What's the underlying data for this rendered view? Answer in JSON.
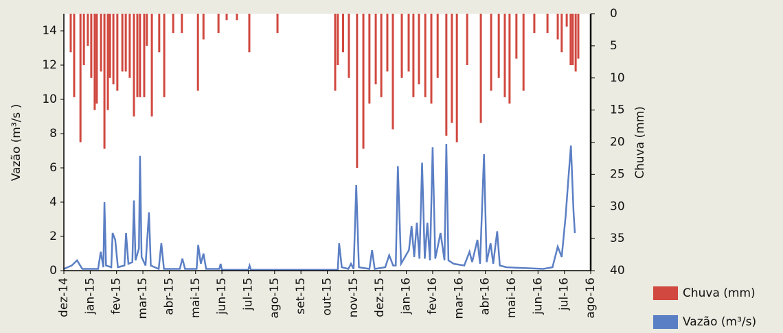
{
  "chart_data": {
    "type": "bar-line",
    "ylabel": "Vazão  (m³/s )",
    "y2label": "Chuva  (mm)",
    "xlim": [
      0,
      20
    ],
    "xticks": [
      {
        "value": 0,
        "label": "dez-14"
      },
      {
        "value": 1,
        "label": "jan-15"
      },
      {
        "value": 2,
        "label": "fev-15"
      },
      {
        "value": 3,
        "label": "mar-15"
      },
      {
        "value": 4,
        "label": "abr-15"
      },
      {
        "value": 5,
        "label": "mai-15"
      },
      {
        "value": 6,
        "label": "jun-15"
      },
      {
        "value": 7,
        "label": "jul-15"
      },
      {
        "value": 8,
        "label": "ago-15"
      },
      {
        "value": 9,
        "label": "set-15"
      },
      {
        "value": 10,
        "label": "out-15"
      },
      {
        "value": 11,
        "label": "nov-15"
      },
      {
        "value": 12,
        "label": "dez-15"
      },
      {
        "value": 13,
        "label": "jan-16"
      },
      {
        "value": 14,
        "label": "fev-16"
      },
      {
        "value": 15,
        "label": "mar-16"
      },
      {
        "value": 16,
        "label": "abr-16"
      },
      {
        "value": 17,
        "label": "mai-16"
      },
      {
        "value": 18,
        "label": "jun-16"
      },
      {
        "value": 19,
        "label": "jul-16"
      },
      {
        "value": 20,
        "label": "ago-16"
      }
    ],
    "ylim": [
      0,
      15
    ],
    "yticks": [
      0,
      2,
      4,
      6,
      8,
      10,
      12,
      14
    ],
    "y2lim": [
      0,
      40
    ],
    "y2ticks": [
      0,
      5,
      10,
      15,
      20,
      25,
      30,
      35,
      40
    ],
    "y2_inverted": true,
    "series": [
      {
        "name": "Chuva (mm)",
        "color": "#d0483f",
        "axis": "y2",
        "kind": "bar",
        "x": [
          0.26,
          0.39,
          0.63,
          0.76,
          0.91,
          1.04,
          1.17,
          1.25,
          1.41,
          1.54,
          1.67,
          1.75,
          1.88,
          2.03,
          2.22,
          2.35,
          2.5,
          2.66,
          2.79,
          2.89,
          3.05,
          3.15,
          3.34,
          3.62,
          3.81,
          4.15,
          4.48,
          5.09,
          5.3,
          5.87,
          6.18,
          6.57,
          7.04,
          8.11,
          10.3,
          10.4,
          10.6,
          10.82,
          11.13,
          11.37,
          11.6,
          11.84,
          12.05,
          12.28,
          12.49,
          12.83,
          13.09,
          13.27,
          13.48,
          13.72,
          13.95,
          14.19,
          14.52,
          14.73,
          14.92,
          15.31,
          15.83,
          16.22,
          16.51,
          16.74,
          16.92,
          17.18,
          17.45,
          17.86,
          18.36,
          18.75,
          18.9,
          19.09,
          19.24,
          19.32,
          19.43,
          19.53
        ],
        "values": [
          6,
          13,
          20,
          8,
          5,
          10,
          15,
          14,
          9,
          21,
          15,
          10,
          11,
          12,
          9,
          9,
          10,
          16,
          13,
          13,
          13,
          5,
          16,
          6,
          13,
          3,
          3,
          12,
          4,
          3,
          1,
          1,
          6,
          3,
          12,
          8,
          6,
          10,
          24,
          21,
          14,
          11,
          13,
          9,
          18,
          10,
          9,
          13,
          11,
          13,
          14,
          10,
          19,
          17,
          20,
          8,
          17,
          12,
          10,
          13,
          14,
          7,
          12,
          3,
          3,
          4,
          6,
          2,
          8,
          8,
          9,
          7
        ]
      },
      {
        "name": "Vazão (m³/s)",
        "color": "#5b7fc4",
        "kind": "line",
        "x": [
          0,
          0.3,
          0.5,
          0.7,
          1.3,
          1.4,
          1.5,
          1.54,
          1.6,
          1.8,
          1.85,
          1.95,
          2.05,
          2.3,
          2.36,
          2.45,
          2.6,
          2.66,
          2.72,
          2.85,
          2.89,
          2.95,
          3.1,
          3.23,
          3.3,
          3.6,
          3.7,
          3.8,
          4.4,
          4.5,
          4.6,
          5.04,
          5.1,
          5.2,
          5.3,
          5.4,
          5.9,
          5.95,
          6.0,
          7.0,
          7.05,
          7.1,
          10.4,
          10.45,
          10.55,
          10.8,
          10.9,
          11.0,
          11.1,
          11.2,
          11.6,
          11.7,
          11.8,
          12.2,
          12.35,
          12.5,
          12.6,
          12.68,
          12.8,
          13.1,
          13.2,
          13.3,
          13.4,
          13.5,
          13.6,
          13.7,
          13.8,
          13.9,
          14.0,
          14.1,
          14.3,
          14.45,
          14.52,
          14.6,
          14.8,
          15.2,
          15.4,
          15.5,
          15.7,
          15.8,
          15.95,
          16.05,
          16.2,
          16.3,
          16.45,
          16.55,
          16.8,
          17.5,
          18.2,
          18.55,
          18.75,
          18.9,
          19.05,
          19.15,
          19.25,
          19.35,
          19.4
        ],
        "values": [
          0.1,
          0.3,
          0.6,
          0.1,
          0.1,
          1.1,
          0.2,
          4.0,
          0.3,
          0.2,
          2.2,
          1.8,
          0.2,
          0.3,
          2.2,
          0.4,
          0.5,
          4.1,
          0.6,
          1.3,
          6.7,
          0.8,
          0.3,
          3.4,
          0.3,
          0.1,
          1.6,
          0.1,
          0.1,
          0.7,
          0.1,
          0.1,
          1.5,
          0.4,
          1.0,
          0.1,
          0.1,
          0.4,
          0.05,
          0.05,
          0.3,
          0.05,
          0.05,
          1.6,
          0.2,
          0.1,
          0.4,
          0.1,
          5.0,
          0.2,
          0.1,
          1.2,
          0.1,
          0.2,
          0.9,
          0.3,
          0.3,
          6.1,
          0.4,
          1.2,
          2.6,
          0.8,
          2.8,
          0.7,
          6.3,
          0.7,
          2.8,
          0.6,
          7.2,
          0.7,
          2.2,
          0.6,
          7.4,
          0.6,
          0.4,
          0.3,
          1.1,
          0.5,
          1.8,
          0.4,
          6.8,
          0.5,
          1.6,
          0.4,
          2.3,
          0.3,
          0.2,
          0.15,
          0.1,
          0.2,
          1.4,
          0.8,
          3.2,
          5.3,
          7.3,
          3.4,
          2.2
        ]
      }
    ]
  }
}
